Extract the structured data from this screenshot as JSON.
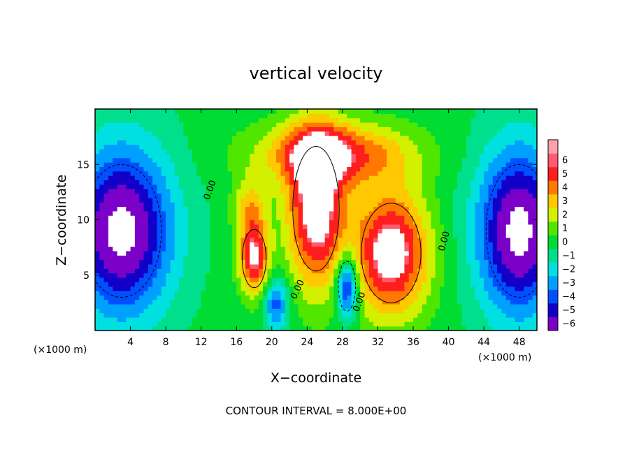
{
  "chart_data": {
    "type": "heatmap",
    "title": "vertical velocity",
    "xlabel": "X−coordinate",
    "ylabel": "Z−coordinate",
    "x_unit_label": "(×1000 m)",
    "z_unit_label": "(×1000 m)",
    "footer": "CONTOUR INTERVAL = 8.000E+00",
    "xlim": [
      0,
      50
    ],
    "zlim": [
      0,
      20
    ],
    "x_ticks": [
      4,
      8,
      12,
      16,
      20,
      24,
      28,
      32,
      36,
      40,
      44,
      48
    ],
    "x_tick_labels": [
      "4",
      "8",
      "12",
      "16",
      "20",
      "24",
      "28",
      "32",
      "36",
      "40",
      "44",
      "48"
    ],
    "z_ticks": [
      5,
      10,
      15
    ],
    "z_tick_labels": [
      "5",
      "10",
      "15"
    ],
    "colorbar": {
      "levels": [
        -6,
        -5,
        -4,
        -3,
        -2,
        -1,
        0,
        1,
        2,
        3,
        4,
        5,
        6
      ],
      "labels": [
        "−6",
        "−5",
        "−4",
        "−3",
        "−2",
        "−1",
        "0",
        "1",
        "2",
        "3",
        "4",
        "5",
        "6"
      ],
      "colors": [
        "#7b00c8",
        "#1200c8",
        "#0050ff",
        "#00a0ff",
        "#00e0e0",
        "#00e08c",
        "#00dc32",
        "#50e600",
        "#d2f000",
        "#ffc800",
        "#ff7800",
        "#ff1e1e",
        "#ff5a6e",
        "#ffa0aa"
      ]
    },
    "contour_labels": [
      {
        "text": "0.00",
        "x": 13.3,
        "z": 12.6,
        "angle": -70
      },
      {
        "text": "0.00",
        "x": 23.2,
        "z": 3.6,
        "angle": -65
      },
      {
        "text": "0.00",
        "x": 30.2,
        "z": 2.5,
        "angle": -70
      },
      {
        "text": "0.00",
        "x": 39.8,
        "z": 8.0,
        "angle": -75
      }
    ],
    "features": [
      {
        "kind": "updraft",
        "x": 25,
        "z": 11,
        "rx": 3.5,
        "rz": 7.5,
        "w": 7
      },
      {
        "kind": "updraft",
        "x": 33.5,
        "z": 7,
        "rx": 4.5,
        "rz": 6,
        "w": 7
      },
      {
        "kind": "updraft",
        "x": 18,
        "z": 6.5,
        "rx": 1.8,
        "rz": 3.5,
        "w": 6
      },
      {
        "kind": "updraft",
        "x": 27,
        "z": 16,
        "rx": 9,
        "rz": 3,
        "w": 5
      },
      {
        "kind": "updraft",
        "x": 17.5,
        "z": 11,
        "rx": 2,
        "rz": 3,
        "w": 3
      },
      {
        "kind": "downdraft",
        "x": 3,
        "z": 9,
        "rx": 6,
        "rz": 8,
        "w": -7
      },
      {
        "kind": "downdraft",
        "x": 48,
        "z": 9,
        "rx": 5,
        "rz": 8,
        "w": -7
      },
      {
        "kind": "downdraft",
        "x": 28.5,
        "z": 4,
        "rx": 1.3,
        "rz": 3,
        "w": -6
      },
      {
        "kind": "downdraft",
        "x": 20.5,
        "z": 2.5,
        "rx": 1.5,
        "rz": 2.5,
        "w": -4
      }
    ]
  }
}
